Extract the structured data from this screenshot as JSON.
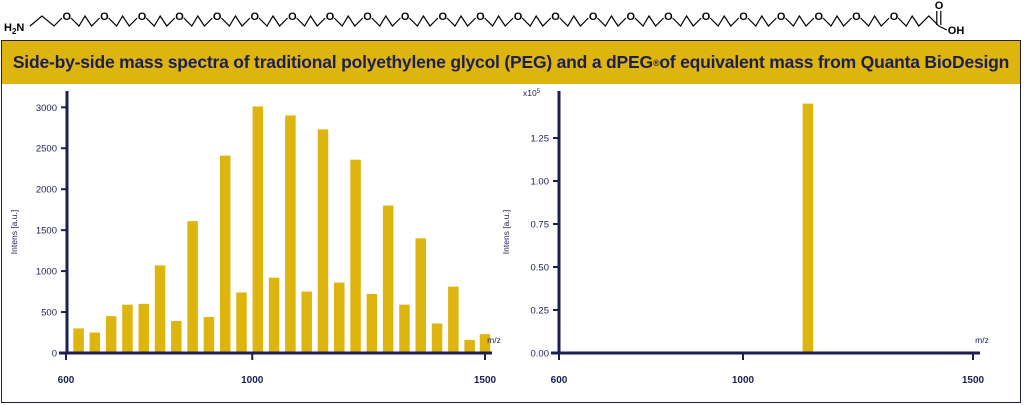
{
  "molecule": {
    "left_group_main": "H",
    "left_group_sub": "2",
    "left_group_end": "N",
    "oxygen_label": "O",
    "oxygen_count": 23,
    "carbonyl_label": "O",
    "acid_label": "OH"
  },
  "banner": {
    "title_part1": "Side-by-side mass spectra of traditional polyethylene glycol (PEG) and a dPEG",
    "title_reg": "®",
    "title_part2": " of equivalent mass from Quanta BioDesign"
  },
  "colors": {
    "bar": "#deb40e",
    "axis": "#1c1f52",
    "banner": "#deb40e"
  },
  "chart_data": [
    {
      "type": "bar",
      "title": "",
      "xlabel": "m/z",
      "ylabel": "Intens [a.u.]",
      "xlim": [
        600,
        1500
      ],
      "ylim": [
        0,
        3150
      ],
      "x_ticks": [
        600,
        1000,
        1500
      ],
      "y_ticks": [
        0,
        500,
        1000,
        1500,
        2000,
        2500,
        3000
      ],
      "y_tick_labels": [
        "0",
        "500",
        "1000",
        "1500",
        "2000",
        "2500",
        "3000"
      ],
      "x": [
        627,
        662,
        697,
        732,
        767,
        802,
        837,
        872,
        907,
        942,
        977,
        1012,
        1047,
        1082,
        1117,
        1152,
        1187,
        1222,
        1257,
        1292,
        1327,
        1362,
        1397,
        1432,
        1467
      ],
      "values": [
        300,
        250,
        450,
        590,
        600,
        1070,
        390,
        1610,
        440,
        2410,
        740,
        3010,
        920,
        2900,
        750,
        2730,
        860,
        2360,
        720,
        1800,
        590,
        1400,
        360,
        810,
        160
      ],
      "extra_x": [
        1500
      ],
      "extra_values": [
        230
      ]
    },
    {
      "type": "bar",
      "title": "",
      "xlabel": "m/z",
      "ylabel": "Intens [a.u.]",
      "y_multiplier_label": "x10",
      "y_multiplier_exp": "5",
      "xlim": [
        600,
        1500
      ],
      "ylim": [
        0,
        1.5
      ],
      "x_ticks": [
        600,
        1000,
        1500
      ],
      "y_ticks": [
        0,
        0.25,
        0.5,
        0.75,
        1.0,
        1.25
      ],
      "y_tick_labels": [
        "0.00",
        "0.25",
        "0.50",
        "0.75",
        "1.00",
        "1.25"
      ],
      "x": [
        1141
      ],
      "values": [
        1.45
      ]
    }
  ]
}
